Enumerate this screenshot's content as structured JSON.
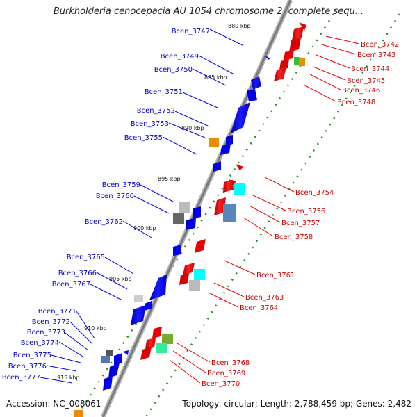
{
  "title": "Burkholderia cenocepacia AU 1054 chromosome 2, complete sequ...",
  "footer": {
    "accession": "Accession: NC_008061",
    "summary": "Topology: circular; Length: 2,788,459 bp; Genes: 2,482"
  },
  "colors": {
    "forward_strand": "#0000ee",
    "reverse_strand": "#ee0000",
    "backbone": "#8c8c8c",
    "tick": "#228b22"
  },
  "ticks": [
    "880 kbp",
    "885 kbp",
    "890 kbp",
    "895 kbp",
    "900 kbp",
    "905 kbp",
    "910 kbp",
    "915 kbp"
  ],
  "forward_genes": [
    "Bcen_3747",
    "Bcen_3749",
    "Bcen_3750",
    "Bcen_3751",
    "Bcen_3752",
    "Bcen_3753",
    "Bcen_3755",
    "Bcen_3759",
    "Bcen_3760",
    "Bcen_3762",
    "Bcen_3765",
    "Bcen_3766",
    "Bcen_3767",
    "Bcen_3771",
    "Bcen_3772",
    "Bcen_3773",
    "Bcen_3774",
    "Bcen_3775",
    "Bcen_3776",
    "Bcen_3777"
  ],
  "reverse_genes": [
    "Bcen_3742",
    "Bcen_3743",
    "Bcen_3744",
    "Bcen_3745",
    "Bcen_3746",
    "Bcen_3748",
    "Bcen_3754",
    "Bcen_3756",
    "Bcen_3757",
    "Bcen_3758",
    "Bcen_3761",
    "Bcen_3763",
    "Bcen_3764",
    "Bcen_3768",
    "Bcen_3769",
    "Bcen_3770"
  ]
}
